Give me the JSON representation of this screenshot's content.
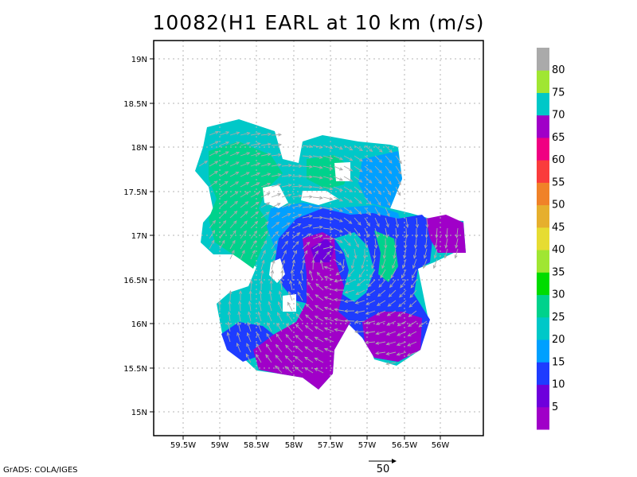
{
  "title": "10082(H1 EARL at 10 km (m/s)",
  "credit": "GrADS: COLA/IGES",
  "scale_vector_label": "50",
  "map": {
    "lon_ticks": [
      "59.5W",
      "59W",
      "58.5W",
      "58W",
      "57.5W",
      "57W",
      "56.5W",
      "56W"
    ],
    "lat_ticks": [
      "19N",
      "18.5N",
      "18N",
      "17.5N",
      "17N",
      "16.5N",
      "16N",
      "15.5N",
      "15N"
    ],
    "grid": true
  },
  "colorbar": {
    "labels": [
      "5",
      "10",
      "15",
      "20",
      "25",
      "30",
      "35",
      "40",
      "45",
      "50",
      "55",
      "60",
      "65",
      "70",
      "75",
      "80"
    ],
    "colors": [
      "#a000c8",
      "#6e00dc",
      "#1e3cff",
      "#00a0ff",
      "#00c8c8",
      "#00d28c",
      "#00dc00",
      "#a0e632",
      "#e6dc32",
      "#e6af2d",
      "#f08228",
      "#fa3c3c",
      "#f00082",
      "#a000c8",
      "#00c8c8",
      "#a0e632",
      "#aaaaaa"
    ]
  },
  "palette": {
    "violet": "#a000c8",
    "purple": "#6e00dc",
    "blue": "#1e3cff",
    "lightblue": "#00a0ff",
    "cyan": "#00c8c8",
    "green": "#00d28c",
    "vector": "#aaaaaa"
  }
}
